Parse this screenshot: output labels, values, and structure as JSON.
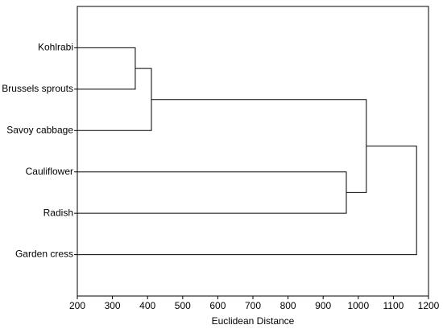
{
  "chart_data": {
    "type": "dendrogram",
    "x_label": "Euclidean Distance",
    "leaves": [
      "Kohlrabi",
      "Brussels sprouts",
      "Savoy cabbage",
      "Cauliflower",
      "Radish",
      "Garden cress"
    ],
    "merges": [
      {
        "children": [
          0,
          1
        ],
        "height": 365
      },
      {
        "children": [
          6,
          2
        ],
        "height": 411
      },
      {
        "children": [
          3,
          4
        ],
        "height": 966
      },
      {
        "children": [
          7,
          8
        ],
        "height": 1023
      },
      {
        "children": [
          9,
          5
        ],
        "height": 1166
      }
    ],
    "xlim": [
      200,
      1200
    ],
    "xticks": [
      200,
      300,
      400,
      500,
      600,
      700,
      800,
      900,
      1000,
      1100,
      1200
    ]
  }
}
